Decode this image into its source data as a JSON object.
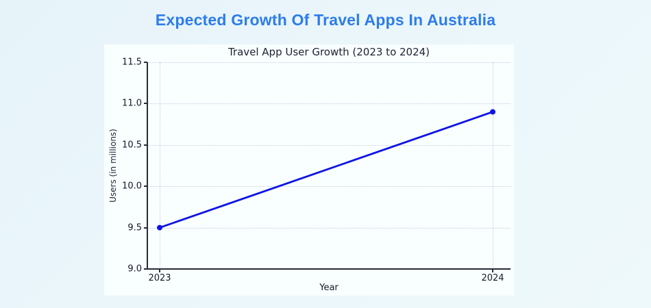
{
  "page": {
    "title": "Expected Growth Of Travel Apps In Australia",
    "title_color": "#2d7cec"
  },
  "chart_data": {
    "type": "line",
    "title": "Travel App User Growth (2023 to 2024)",
    "xlabel": "Year",
    "ylabel": "Users (in millions)",
    "categories": [
      "2023",
      "2024"
    ],
    "values": [
      9.5,
      10.9
    ],
    "ylim": [
      9.0,
      11.5
    ],
    "yticks": [
      9.0,
      9.5,
      10.0,
      10.5,
      11.0,
      11.5
    ],
    "grid": true,
    "legend_position": "none",
    "line_color": "#0d14e6",
    "marker": "circle",
    "background_color": "#f9feff",
    "page_background_color": "#ecf7fb",
    "gridline_color": "#c3cfdf"
  }
}
